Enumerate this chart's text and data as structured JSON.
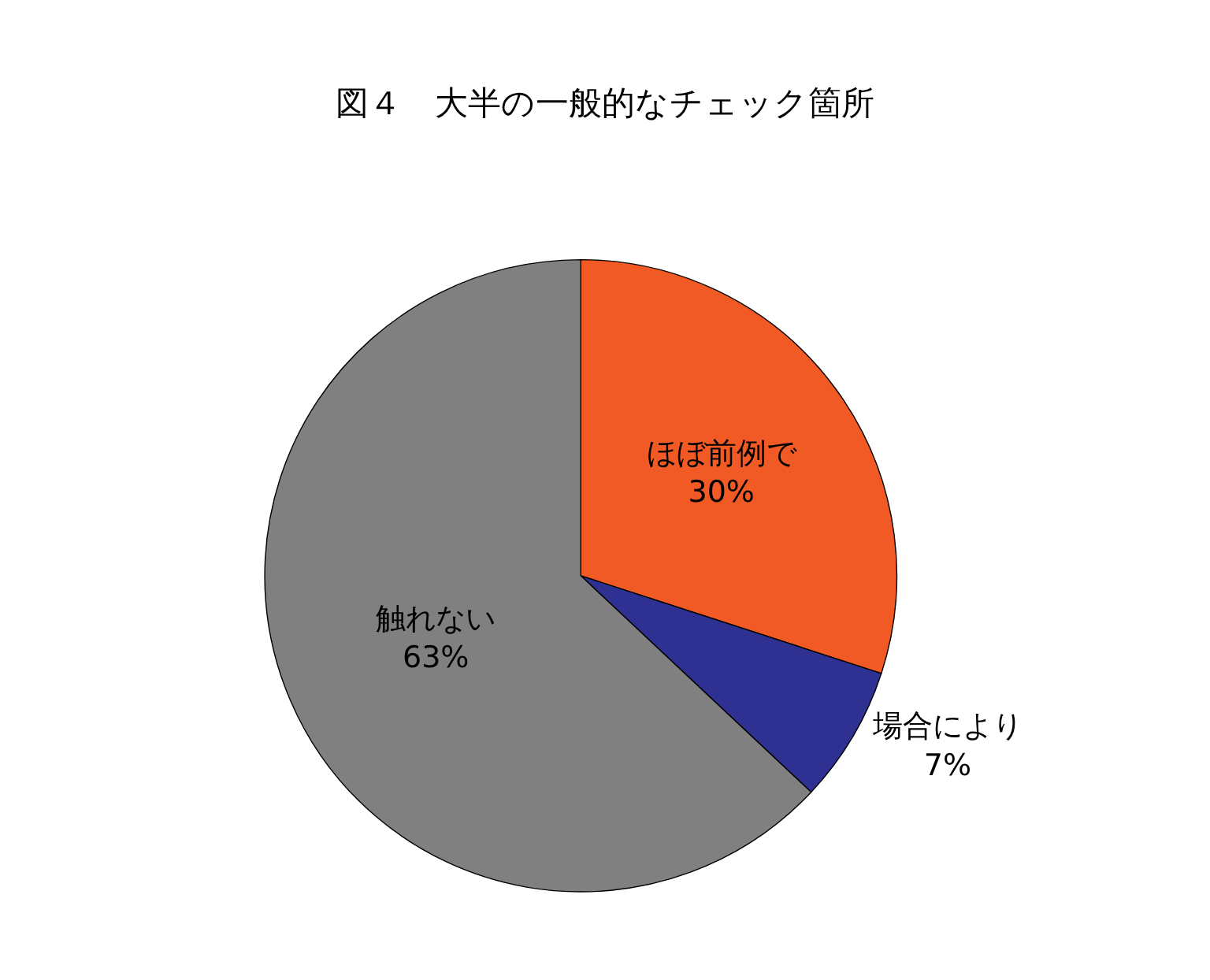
{
  "chart_data": {
    "type": "pie",
    "title": "図４　大半の一般的なチェック箇所",
    "categories": [
      "ほぼ前例で",
      "場合により",
      "触れない"
    ],
    "values": [
      30,
      7,
      63
    ],
    "value_labels": [
      "30%",
      "7%",
      "63%"
    ],
    "colors": [
      "#f15a24",
      "#2e3192",
      "#808080"
    ],
    "legend": false
  }
}
